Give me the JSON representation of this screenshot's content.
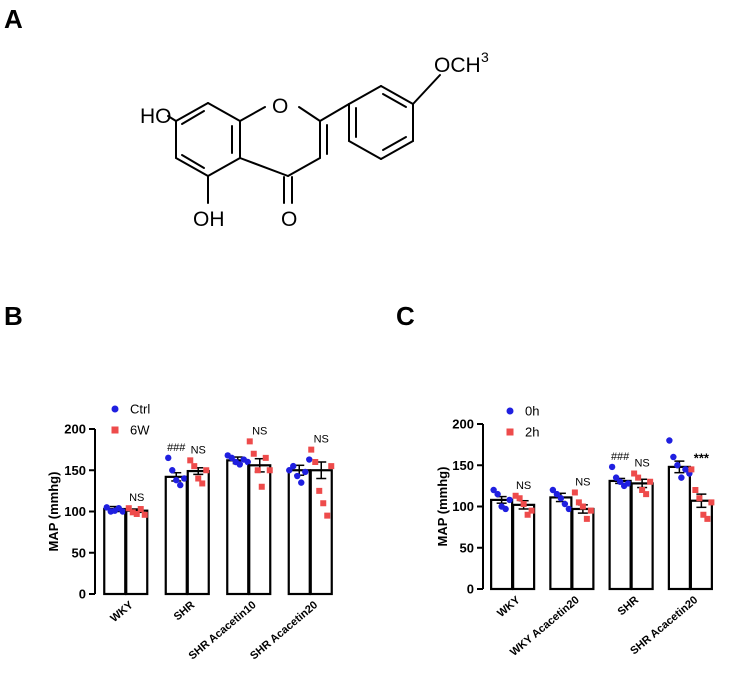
{
  "panels": {
    "a": "A",
    "b": "B",
    "c": "C"
  },
  "structure": {
    "labels": {
      "ho": "HO",
      "oh": "OH",
      "o_ring": "O",
      "o_carbonyl": "O",
      "och3_main": "OCH",
      "och3_sup": "3"
    }
  },
  "chart_data": [
    {
      "id": "B",
      "type": "bar",
      "ylabel": "MAP (mmhg)",
      "ylim": [
        0,
        200
      ],
      "yticks": [
        0,
        50,
        100,
        150,
        200
      ],
      "categories": [
        "WKY",
        "SHR",
        "SHR Acacetin10",
        "SHR Acacetin20"
      ],
      "legend": {
        "position": "top-left"
      },
      "colors": {
        "Ctrl": "#1f1fe0",
        "6W": "#ee4b4b"
      },
      "series": [
        {
          "name": "Ctrl",
          "marker": "circle",
          "values": [
            103,
            142,
            162,
            150
          ],
          "errors": [
            3,
            5,
            4,
            6
          ],
          "points": [
            [
              105,
              100,
              101,
              104,
              100
            ],
            [
              165,
              150,
              138,
              132,
              140
            ],
            [
              168,
              165,
              160,
              157,
              163,
              160
            ],
            [
              150,
              155,
              143,
              135,
              148,
              163
            ]
          ]
        },
        {
          "name": "6W",
          "marker": "square",
          "values": [
            101,
            149,
            156,
            150
          ],
          "errors": [
            2,
            4,
            8,
            10
          ],
          "points": [
            [
              104,
              99,
              97,
              103,
              96
            ],
            [
              162,
              155,
              140,
              134,
              150
            ],
            [
              185,
              170,
              150,
              130,
              165,
              150
            ],
            [
              175,
              160,
              125,
              110,
              95,
              155
            ]
          ]
        }
      ],
      "annotations": [
        {
          "category": 0,
          "series": "6W",
          "text": "NS"
        },
        {
          "category": 1,
          "series": "Ctrl",
          "text": "###"
        },
        {
          "category": 1,
          "series": "6W",
          "text": "NS"
        },
        {
          "category": 2,
          "series": "6W",
          "text": "NS"
        },
        {
          "category": 3,
          "series": "6W",
          "text": "NS"
        }
      ]
    },
    {
      "id": "C",
      "type": "bar",
      "ylabel": "MAP (mmhg)",
      "ylim": [
        0,
        200
      ],
      "yticks": [
        0,
        50,
        100,
        150,
        200
      ],
      "categories": [
        "WKY",
        "WKY  Acacetin20",
        "SHR",
        "SHR Acacetin20"
      ],
      "legend": {
        "position": "top-left"
      },
      "colors": {
        "0h": "#1f1fe0",
        "2h": "#ee4b4b"
      },
      "series": [
        {
          "name": "0h",
          "marker": "circle",
          "values": [
            108,
            111,
            131,
            148
          ],
          "errors": [
            4,
            5,
            3,
            7
          ],
          "points": [
            [
              120,
              115,
              100,
              97,
              108
            ],
            [
              120,
              115,
              110,
              103,
              97
            ],
            [
              148,
              135,
              130,
              125,
              128
            ],
            [
              180,
              160,
              150,
              135,
              145,
              140
            ]
          ]
        },
        {
          "name": "2h",
          "marker": "square",
          "values": [
            102,
            97,
            128,
            107
          ],
          "errors": [
            5,
            5,
            5,
            8
          ],
          "points": [
            [
              113,
              110,
              103,
              90,
              95
            ],
            [
              117,
              105,
              100,
              85,
              95
            ],
            [
              140,
              135,
              120,
              115,
              130
            ],
            [
              145,
              120,
              110,
              90,
              85,
              105
            ]
          ]
        }
      ],
      "annotations": [
        {
          "category": 0,
          "series": "2h",
          "text": "NS"
        },
        {
          "category": 1,
          "series": "2h",
          "text": "NS"
        },
        {
          "category": 2,
          "series": "0h",
          "text": "###"
        },
        {
          "category": 2,
          "series": "2h",
          "text": "NS"
        },
        {
          "category": 3,
          "series": "2h",
          "text": "***"
        }
      ]
    }
  ]
}
